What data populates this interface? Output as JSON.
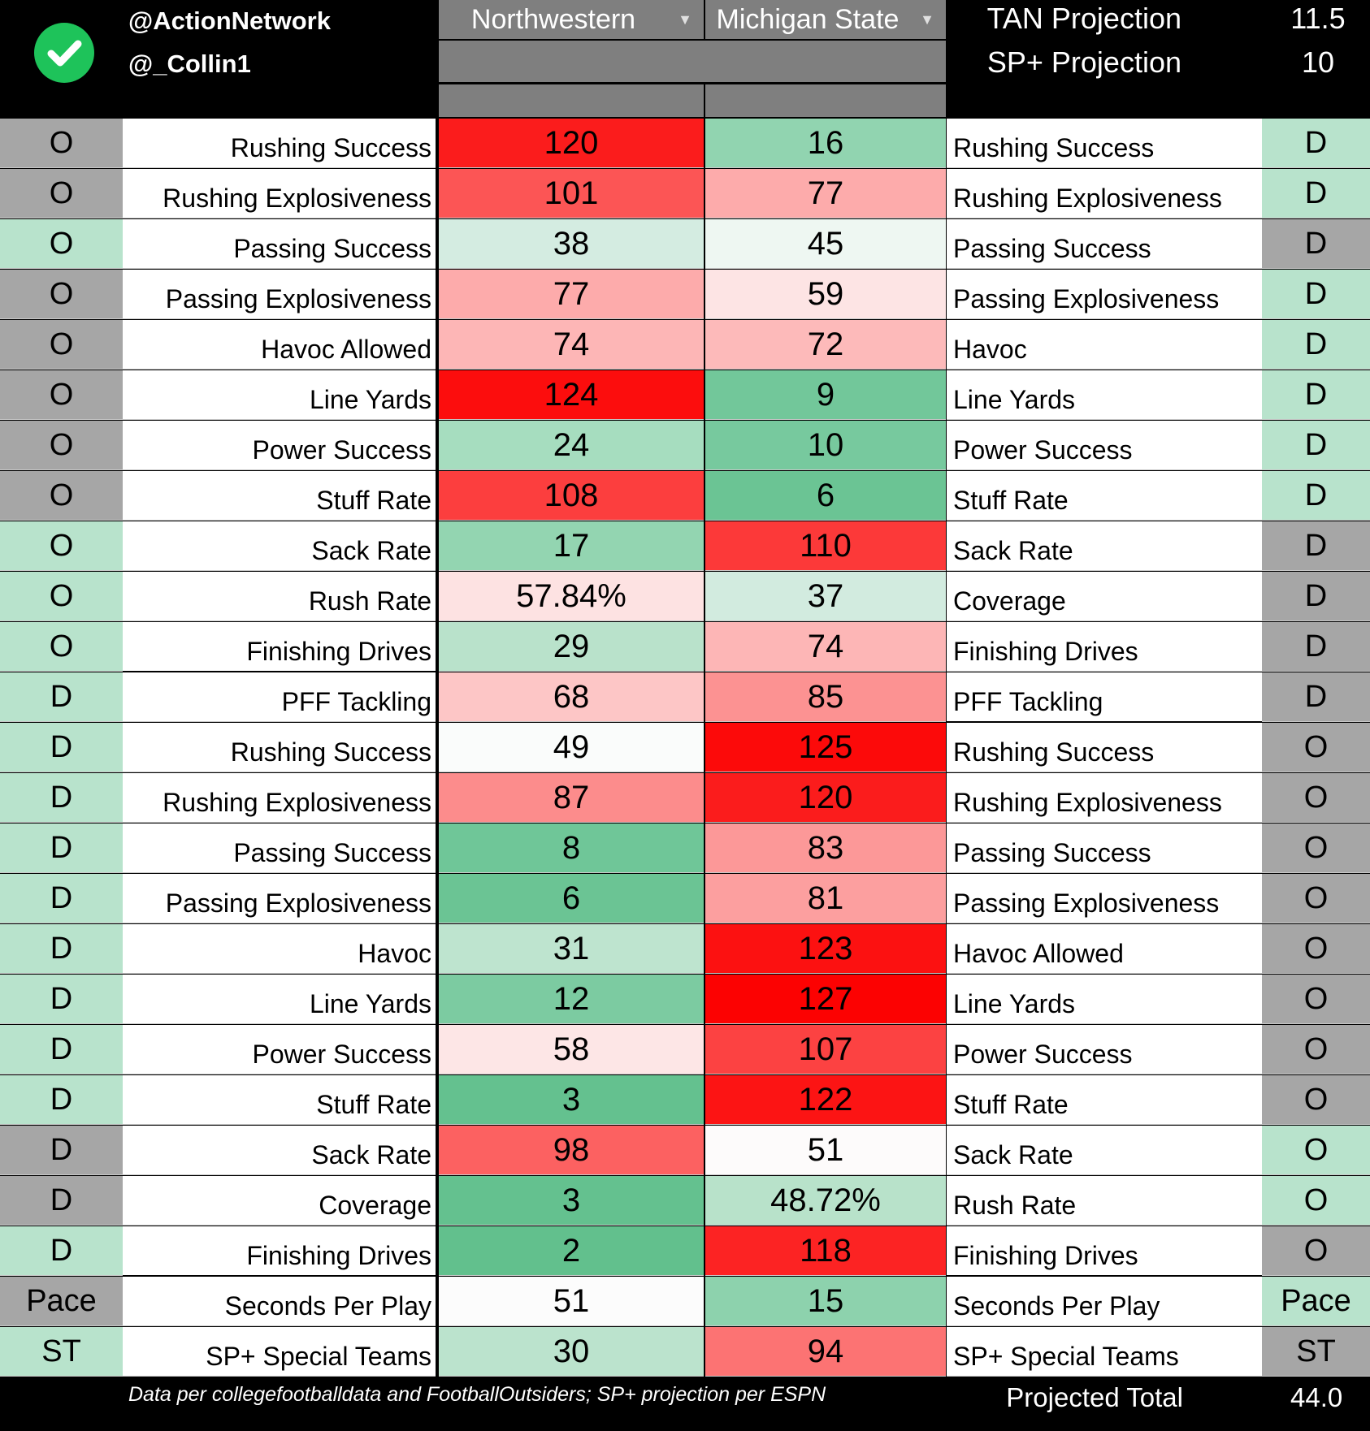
{
  "header": {
    "handles": [
      "@ActionNetwork",
      "@_Collin1"
    ],
    "team_left": "Northwestern",
    "team_right": "Michigan State",
    "projections": [
      {
        "label": "TAN Projection",
        "value": "11.5"
      },
      {
        "label": "SP+ Projection",
        "value": "10"
      }
    ],
    "icons": {
      "logo": "check-circle-icon",
      "dropdown": "dropdown-arrow-icon"
    }
  },
  "colors": {
    "gray": "#a6a6a6",
    "green_tag": "#b8e3cc",
    "header_gray": "#7f7f7f",
    "logo_green": "#1ec35a"
  },
  "rows": [
    {
      "lt": "O",
      "ltc": "gray",
      "ll": "Rushing Success",
      "a": "120",
      "ac": "#fb1c1c",
      "b": "16",
      "bc": "#91d4b0",
      "rl": "Rushing Success",
      "rt": "D",
      "rtc": "green"
    },
    {
      "lt": "O",
      "ltc": "gray",
      "ll": "Rushing Explosiveness",
      "a": "101",
      "ac": "#fc5555",
      "b": "77",
      "bc": "#fdabab",
      "rl": "Rushing Explosiveness",
      "rt": "D",
      "rtc": "green"
    },
    {
      "lt": "O",
      "ltc": "green",
      "ll": "Passing Success",
      "a": "38",
      "ac": "#d4ece1",
      "b": "45",
      "bc": "#eef7f2",
      "rl": "Passing Success",
      "rt": "D",
      "rtc": "gray"
    },
    {
      "lt": "O",
      "ltc": "gray",
      "ll": "Passing Explosiveness",
      "a": "77",
      "ac": "#fdabab",
      "b": "59",
      "bc": "#fde4e4",
      "rl": "Passing Explosiveness",
      "rt": "D",
      "rtc": "green"
    },
    {
      "lt": "O",
      "ltc": "gray",
      "ll": "Havoc Allowed",
      "a": "74",
      "ac": "#fdb6b6",
      "b": "72",
      "bc": "#fdbaba",
      "rl": "Havoc",
      "rt": "D",
      "rtc": "green"
    },
    {
      "lt": "O",
      "ltc": "gray",
      "ll": "Line Yards",
      "a": "124",
      "ac": "#fc0d0d",
      "b": "9",
      "bc": "#72c79a",
      "rl": "Line Yards",
      "rt": "D",
      "rtc": "green"
    },
    {
      "lt": "O",
      "ltc": "gray",
      "ll": "Power Success",
      "a": "24",
      "ac": "#a6ddbf",
      "b": "10",
      "bc": "#77c99e",
      "rl": "Power Success",
      "rt": "D",
      "rtc": "green"
    },
    {
      "lt": "O",
      "ltc": "gray",
      "ll": "Stuff Rate",
      "a": "108",
      "ac": "#fc3e3e",
      "b": "6",
      "bc": "#6bc494",
      "rl": "Stuff Rate",
      "rt": "D",
      "rtc": "green"
    },
    {
      "lt": "O",
      "ltc": "green",
      "ll": "Sack Rate",
      "a": "17",
      "ac": "#93d5b1",
      "b": "110",
      "bc": "#fc3939",
      "rl": "Sack Rate",
      "rt": "D",
      "rtc": "gray"
    },
    {
      "lt": "O",
      "ltc": "green",
      "ll": "Rush Rate",
      "a": "57.84%",
      "ac": "#fde2e2",
      "b": "37",
      "bc": "#d2ebdf",
      "rl": "Coverage",
      "rt": "D",
      "rtc": "gray"
    },
    {
      "lt": "O",
      "ltc": "green",
      "ll": "Finishing Drives",
      "a": "29",
      "ac": "#b9e2cb",
      "b": "74",
      "bc": "#fdb6b6",
      "rl": "Finishing Drives",
      "rt": "D",
      "rtc": "gray"
    },
    {
      "lt": "D",
      "ltc": "green",
      "ll": "PFF Tackling",
      "a": "68",
      "ac": "#fdc6c6",
      "b": "85",
      "bc": "#fc9292",
      "rl": "PFF Tackling",
      "rt": "D",
      "rtc": "gray"
    },
    {
      "lt": "D",
      "ltc": "green",
      "ll": "Rushing Success",
      "a": "49",
      "ac": "#fafcfb",
      "b": "125",
      "bc": "#fc0a0a",
      "rl": "Rushing Success",
      "rt": "O",
      "rtc": "gray"
    },
    {
      "lt": "D",
      "ltc": "green",
      "ll": "Rushing Explosiveness",
      "a": "87",
      "ac": "#fc8c8c",
      "b": "120",
      "bc": "#fb1c1c",
      "rl": "Rushing Explosiveness",
      "rt": "O",
      "rtc": "gray"
    },
    {
      "lt": "D",
      "ltc": "green",
      "ll": "Passing Success",
      "a": "8",
      "ac": "#6fc698",
      "b": "83",
      "bc": "#fc9898",
      "rl": "Passing Success",
      "rt": "O",
      "rtc": "gray"
    },
    {
      "lt": "D",
      "ltc": "green",
      "ll": "Passing Explosiveness",
      "a": "6",
      "ac": "#6bc494",
      "b": "81",
      "bc": "#fc9f9f",
      "rl": "Passing Explosiveness",
      "rt": "O",
      "rtc": "gray"
    },
    {
      "lt": "D",
      "ltc": "green",
      "ll": "Havoc",
      "a": "31",
      "ac": "#bee4cf",
      "b": "123",
      "bc": "#fc1111",
      "rl": "Havoc Allowed",
      "rt": "O",
      "rtc": "gray"
    },
    {
      "lt": "D",
      "ltc": "green",
      "ll": "Line Yards",
      "a": "12",
      "ac": "#7ccba1",
      "b": "127",
      "bc": "#fc0202",
      "rl": "Line Yards",
      "rt": "O",
      "rtc": "gray"
    },
    {
      "lt": "D",
      "ltc": "green",
      "ll": "Power Success",
      "a": "58",
      "ac": "#fde6e6",
      "b": "107",
      "bc": "#fc4242",
      "rl": "Power Success",
      "rt": "O",
      "rtc": "gray"
    },
    {
      "lt": "D",
      "ltc": "green",
      "ll": "Stuff Rate",
      "a": "3",
      "ac": "#64c18f",
      "b": "122",
      "bc": "#fc1414",
      "rl": "Stuff Rate",
      "rt": "O",
      "rtc": "gray"
    },
    {
      "lt": "D",
      "ltc": "gray",
      "ll": "Sack Rate",
      "a": "98",
      "ac": "#fc6161",
      "b": "51",
      "bc": "#fdfbfb",
      "rl": "Sack Rate",
      "rt": "O",
      "rtc": "green"
    },
    {
      "lt": "D",
      "ltc": "gray",
      "ll": "Coverage",
      "a": "3",
      "ac": "#64c18f",
      "b": "48.72%",
      "bc": "#b8e2ca",
      "rl": "Rush Rate",
      "rt": "O",
      "rtc": "green"
    },
    {
      "lt": "D",
      "ltc": "green",
      "ll": "Finishing Drives",
      "a": "2",
      "ac": "#62c08d",
      "b": "118",
      "bc": "#fc2323",
      "rl": "Finishing Drives",
      "rt": "O",
      "rtc": "gray"
    },
    {
      "lt": "Pace",
      "ltc": "gray",
      "ll": "Seconds Per Play",
      "a": "51",
      "ac": "#fcfcfc",
      "b": "15",
      "bc": "#8dd2ad",
      "rl": "Seconds Per Play",
      "rt": "Pace",
      "rtc": "green"
    },
    {
      "lt": "ST",
      "ltc": "green",
      "ll": "SP+ Special Teams",
      "a": "30",
      "ac": "#bbe3cd",
      "b": "94",
      "bc": "#fc7373",
      "rl": "SP+ Special Teams",
      "rt": "ST",
      "rtc": "gray"
    }
  ],
  "footer": {
    "note": "Data per collegefootballdata and FootballOutsiders; SP+ projection per ESPN",
    "total_label": "Projected Total",
    "total_value": "44.0"
  }
}
